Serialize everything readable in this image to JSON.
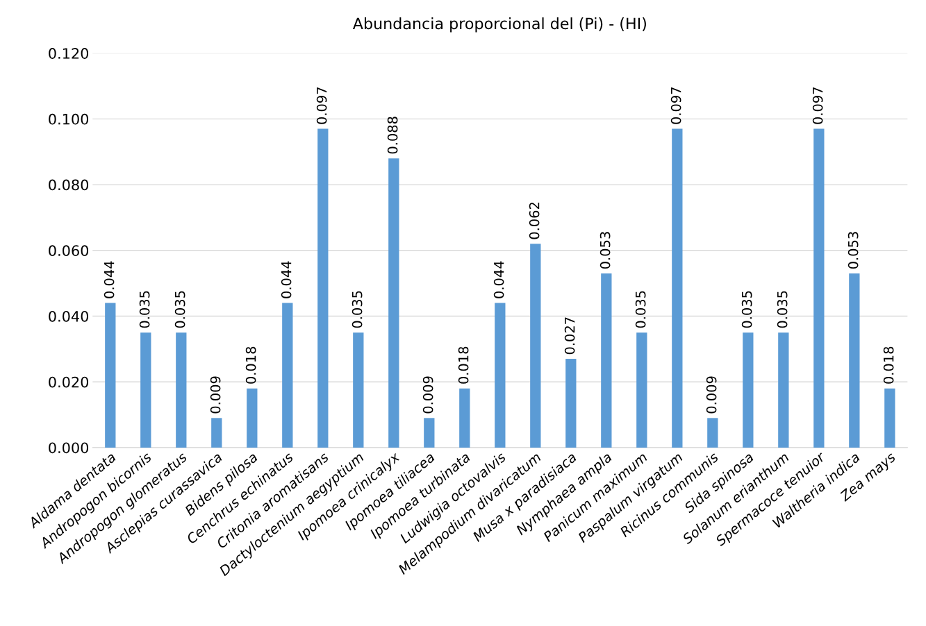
{
  "chart_data": {
    "type": "bar",
    "title": "Abundancia proporcional del (Pi) - (HI)",
    "categories": [
      "Aldama dentata",
      "Andropogon bicornis",
      "Andropogon glomeratus",
      "Asclepias curassavica",
      "Bidens pilosa",
      "Cenchrus echinatus",
      "Critonia aromatisans",
      "Dactyloctenium aegyptium",
      "Ipomoea crinicalyx",
      "Ipomoea tiliacea",
      "Ipomoea turbinata",
      "Ludwigia octovalvis",
      "Melampodium divaricatum",
      "Musa x paradisiaca",
      "Nymphaea ampla",
      "Panicum maximum",
      "Paspalum virgatum",
      "Ricinus communis",
      "Sida spinosa",
      "Solanum erianthum",
      "Spermacoce tenuior",
      "Waltheria indica",
      "Zea mays"
    ],
    "values": [
      0.044,
      0.035,
      0.035,
      0.009,
      0.018,
      0.044,
      0.097,
      0.035,
      0.088,
      0.009,
      0.018,
      0.044,
      0.062,
      0.027,
      0.053,
      0.035,
      0.097,
      0.009,
      0.035,
      0.035,
      0.097,
      0.053,
      0.018
    ],
    "color": "#5b9bd5",
    "ylim": [
      0,
      0.12
    ],
    "yticks": [
      {
        "value": 0,
        "label": "0.000"
      },
      {
        "value": 0.02,
        "label": "0.020"
      },
      {
        "value": 0.04,
        "label": "0.040"
      },
      {
        "value": 0.06,
        "label": "0.060"
      },
      {
        "value": 0.08,
        "label": "0.080"
      },
      {
        "value": 0.1,
        "label": "0.100"
      },
      {
        "value": 0.12,
        "label": "0.120"
      }
    ],
    "grid": "y",
    "data_labels": true
  }
}
